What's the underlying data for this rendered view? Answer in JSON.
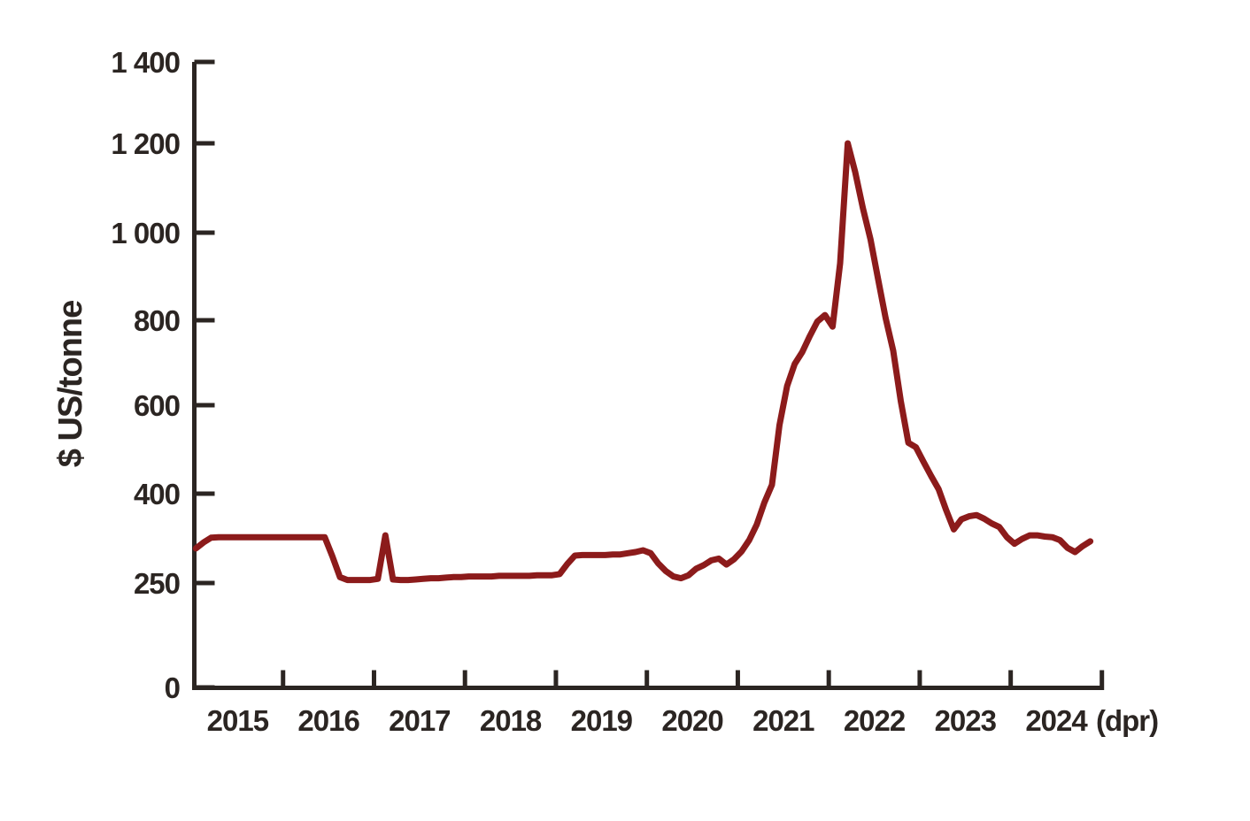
{
  "chart_data": {
    "type": "line",
    "title": "",
    "ylabel": "$ US/tonne",
    "xlabel": "",
    "x_tick_labels": [
      "2015",
      "2016",
      "2017",
      "2018",
      "2019",
      "2020",
      "2021",
      "2022",
      "2023",
      "2024"
    ],
    "x_suffix_label": "(dpr)",
    "y_tick_values": [
      0,
      250,
      400,
      600,
      800,
      1000,
      1200,
      1400
    ],
    "y_tick_labels": [
      "0",
      "250",
      "400",
      "600",
      "800",
      "1 000",
      "1 200",
      "1 400"
    ],
    "y_axis_note": "labeled ticks are spaced almost equally despite unequal value steps (non-linear axis)",
    "legend": "none",
    "grid": "off",
    "series": [
      {
        "name": "price-us-per-tonne",
        "frequency": "monthly",
        "start_year": 2015,
        "start_month": 1,
        "values": [
          308,
          318,
          326,
          327,
          327,
          327,
          327,
          327,
          327,
          327,
          327,
          327,
          327,
          327,
          327,
          327,
          327,
          327,
          295,
          260,
          255,
          255,
          255,
          255,
          257,
          330,
          256,
          255,
          255,
          256,
          257,
          258,
          258,
          259,
          260,
          260,
          261,
          261,
          261,
          261,
          262,
          262,
          262,
          262,
          262,
          263,
          263,
          263,
          265,
          282,
          296,
          297,
          297,
          297,
          297,
          298,
          298,
          300,
          302,
          305,
          300,
          283,
          270,
          261,
          258,
          263,
          274,
          280,
          288,
          291,
          281,
          290,
          303,
          322,
          348,
          385,
          420,
          555,
          645,
          697,
          725,
          763,
          797,
          812,
          785,
          930,
          1200,
          1135,
          1055,
          985,
          895,
          805,
          728,
          610,
          515,
          505,
          472,
          440,
          410,
          372,
          340,
          357,
          362,
          364,
          358,
          350,
          344,
          327,
          316,
          324,
          330,
          330,
          328,
          327,
          322,
          309,
          302,
          312,
          320
        ]
      }
    ]
  },
  "colors": {
    "line": "#8c1b1b",
    "axis": "#2b2522",
    "text": "#2b2522",
    "background": "#ffffff"
  }
}
